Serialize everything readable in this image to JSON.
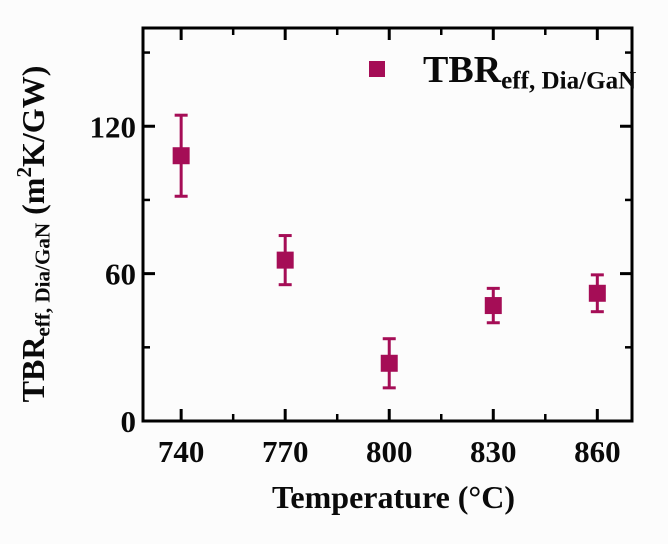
{
  "chart_data": {
    "type": "scatter",
    "title": "",
    "xlabel": "Temperature (°C)",
    "ylabel": "TBR_eff, Dia/GaN (m²K/GW)",
    "ylabel_parts": [
      {
        "t": "TBR",
        "s": "base"
      },
      {
        "t": "eff,  Dia/GaN",
        "s": "sub"
      },
      {
        "t": " (m",
        "s": "base"
      },
      {
        "t": "2",
        "s": "sup"
      },
      {
        "t": "K/GW)",
        "s": "base"
      }
    ],
    "xlim": [
      729,
      870
    ],
    "ylim": [
      0,
      160
    ],
    "x_major_ticks": [
      740,
      770,
      800,
      830,
      860
    ],
    "x_minor_ticks": [
      755,
      785,
      815,
      845
    ],
    "y_major_ticks": [
      0,
      60,
      120
    ],
    "y_minor_ticks": [
      30,
      90,
      150
    ],
    "grid": false,
    "frame_color": "#000000",
    "background_color": "#fcfcfc",
    "legend": {
      "position": "top-right",
      "marker": "square",
      "label": "TBR_eff, Dia/GaN",
      "label_parts": [
        {
          "t": "TBR",
          "s": "base"
        },
        {
          "t": "eff, Dia/GaN",
          "s": "sub"
        }
      ]
    },
    "series": [
      {
        "name": "TBR_eff, Dia/GaN",
        "marker": "square",
        "color": "#A50D56",
        "x": [
          740,
          770,
          800,
          830,
          860
        ],
        "y": [
          108,
          65.5,
          23.5,
          47,
          52
        ],
        "y_err": [
          16.5,
          10,
          10,
          7,
          7.5
        ]
      }
    ]
  }
}
